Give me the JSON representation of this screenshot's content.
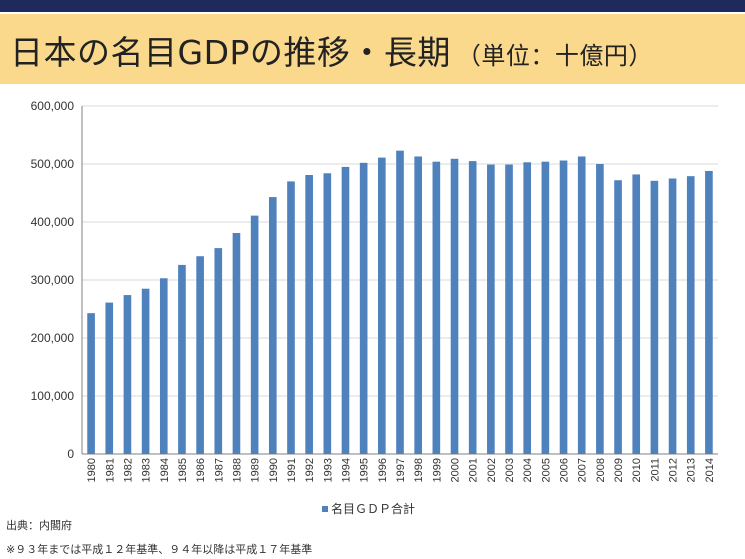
{
  "page": {
    "title": "日本の名目GDPの推移・長期",
    "title_unit": "（単位：十億円）",
    "source": "出典：内閣府",
    "note": "※９３年までは平成１２年基準、９４年以降は平成１７年基準"
  },
  "colors": {
    "bar": "#4f81bd",
    "header_band": "#fad98c",
    "top_bar": "#1f2a5c",
    "gridline": "#d9d9d9"
  },
  "chart_data": {
    "type": "bar",
    "title": "",
    "xlabel": "",
    "ylabel": "",
    "categories": [
      "1980",
      "1981",
      "1982",
      "1983",
      "1984",
      "1985",
      "1986",
      "1987",
      "1988",
      "1989",
      "1990",
      "1991",
      "1992",
      "1993",
      "1994",
      "1995",
      "1996",
      "1997",
      "1998",
      "1999",
      "2000",
      "2001",
      "2002",
      "2003",
      "2004",
      "2005",
      "2006",
      "2007",
      "2008",
      "2009",
      "2010",
      "2011",
      "2012",
      "2013",
      "2014"
    ],
    "series": [
      {
        "name": "名目ＧＤＰ合計",
        "values": [
          242800,
          261000,
          274000,
          285000,
          303000,
          326000,
          341000,
          355000,
          381000,
          411000,
          443000,
          470000,
          481000,
          484000,
          495000,
          502000,
          511000,
          523000,
          513000,
          504000,
          509000,
          505000,
          499000,
          499000,
          503000,
          504000,
          506000,
          513000,
          500000,
          472000,
          482000,
          471000,
          475000,
          479000,
          488000
        ]
      }
    ],
    "ylim": [
      0,
      600000
    ],
    "yticks": [
      0,
      100000,
      200000,
      300000,
      400000,
      500000,
      600000
    ],
    "ytick_labels": [
      "0",
      "100,000",
      "200,000",
      "300,000",
      "400,000",
      "500,000",
      "600,000"
    ],
    "grid": true,
    "legend_position": "bottom"
  }
}
